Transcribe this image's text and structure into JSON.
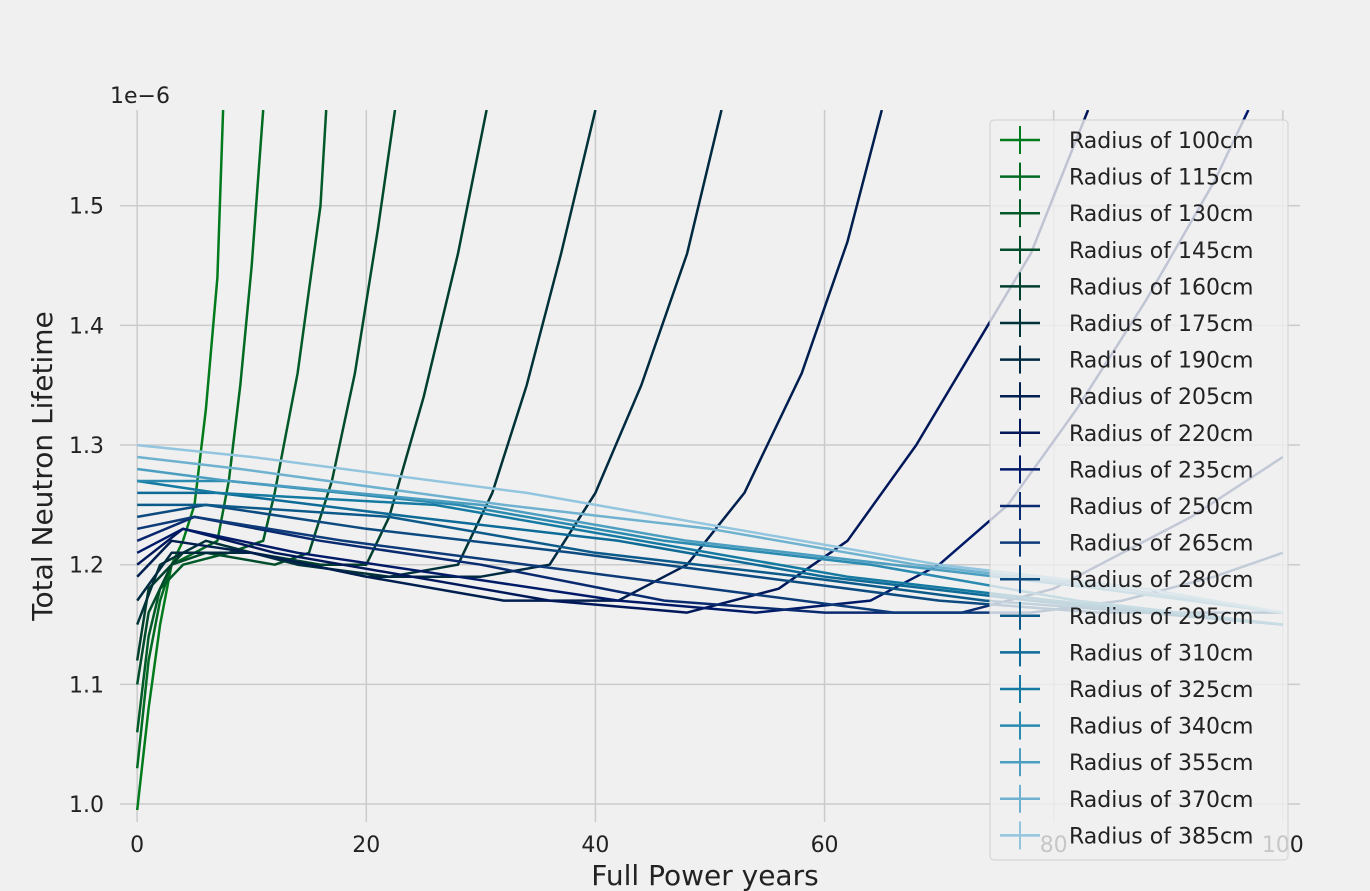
{
  "chart_data": {
    "type": "line",
    "title": "",
    "xlabel": "Full Power years",
    "ylabel": "Total Neutron Lifetime",
    "y_offset_label": "1e−6",
    "xlim": [
      -1.5,
      101.5
    ],
    "ylim": [
      0.985,
      1.58
    ],
    "xticks": [
      0,
      20,
      40,
      60,
      80,
      100
    ],
    "yticks": [
      1.0,
      1.1,
      1.2,
      1.3,
      1.4,
      1.5
    ],
    "ytick_labels": [
      "1.0",
      "1.1",
      "1.2",
      "1.3",
      "1.4",
      "1.5"
    ],
    "grid": true,
    "legend_position": "right",
    "background": "#f0f0f0",
    "series": [
      {
        "name": "Radius of 100cm",
        "color": "#007a1b",
        "points": [
          [
            0,
            0.995
          ],
          [
            1,
            1.08
          ],
          [
            2,
            1.15
          ],
          [
            3,
            1.2
          ],
          [
            4,
            1.22
          ],
          [
            5,
            1.25
          ],
          [
            6,
            1.33
          ],
          [
            7,
            1.44
          ],
          [
            7.5,
            1.58
          ]
        ]
      },
      {
        "name": "Radius of 115cm",
        "color": "#006a22",
        "points": [
          [
            0,
            1.03
          ],
          [
            1,
            1.12
          ],
          [
            2,
            1.17
          ],
          [
            3,
            1.2
          ],
          [
            5,
            1.21
          ],
          [
            7,
            1.22
          ],
          [
            8,
            1.27
          ],
          [
            9,
            1.35
          ],
          [
            10,
            1.45
          ],
          [
            11,
            1.58
          ]
        ]
      },
      {
        "name": "Radius of 130cm",
        "color": "#005a28",
        "points": [
          [
            0,
            1.06
          ],
          [
            1,
            1.14
          ],
          [
            2,
            1.18
          ],
          [
            4,
            1.2
          ],
          [
            8,
            1.21
          ],
          [
            11,
            1.22
          ],
          [
            12,
            1.26
          ],
          [
            14,
            1.36
          ],
          [
            16,
            1.5
          ],
          [
            16.5,
            1.58
          ]
        ]
      },
      {
        "name": "Radius of 145cm",
        "color": "#004c2a",
        "points": [
          [
            0,
            1.1
          ],
          [
            1,
            1.16
          ],
          [
            3,
            1.2
          ],
          [
            6,
            1.21
          ],
          [
            12,
            1.2
          ],
          [
            15,
            1.21
          ],
          [
            17,
            1.27
          ],
          [
            19,
            1.36
          ],
          [
            21,
            1.48
          ],
          [
            22.5,
            1.58
          ]
        ]
      },
      {
        "name": "Radius of 160cm",
        "color": "#003f2e",
        "points": [
          [
            0,
            1.12
          ],
          [
            1,
            1.18
          ],
          [
            4,
            1.21
          ],
          [
            10,
            1.21
          ],
          [
            16,
            1.2
          ],
          [
            20,
            1.2
          ],
          [
            22,
            1.24
          ],
          [
            25,
            1.34
          ],
          [
            28,
            1.46
          ],
          [
            30.5,
            1.58
          ]
        ]
      },
      {
        "name": "Radius of 175cm",
        "color": "#003338",
        "points": [
          [
            0,
            1.15
          ],
          [
            2,
            1.2
          ],
          [
            6,
            1.22
          ],
          [
            14,
            1.2
          ],
          [
            22,
            1.19
          ],
          [
            28,
            1.2
          ],
          [
            31,
            1.26
          ],
          [
            34,
            1.35
          ],
          [
            37,
            1.46
          ],
          [
            40,
            1.58
          ]
        ]
      },
      {
        "name": "Radius of 190cm",
        "color": "#002a40",
        "points": [
          [
            0,
            1.17
          ],
          [
            3,
            1.21
          ],
          [
            10,
            1.21
          ],
          [
            20,
            1.19
          ],
          [
            30,
            1.19
          ],
          [
            36,
            1.2
          ],
          [
            40,
            1.26
          ],
          [
            44,
            1.35
          ],
          [
            48,
            1.46
          ],
          [
            51,
            1.58
          ]
        ]
      },
      {
        "name": "Radius of 205cm",
        "color": "#001e4e",
        "points": [
          [
            0,
            1.19
          ],
          [
            3,
            1.22
          ],
          [
            10,
            1.21
          ],
          [
            20,
            1.19
          ],
          [
            32,
            1.17
          ],
          [
            42,
            1.17
          ],
          [
            48,
            1.2
          ],
          [
            53,
            1.26
          ],
          [
            58,
            1.36
          ],
          [
            62,
            1.47
          ],
          [
            65,
            1.58
          ]
        ]
      },
      {
        "name": "Radius of 220cm",
        "color": "#00175a",
        "points": [
          [
            0,
            1.2
          ],
          [
            4,
            1.23
          ],
          [
            12,
            1.21
          ],
          [
            24,
            1.19
          ],
          [
            36,
            1.17
          ],
          [
            48,
            1.16
          ],
          [
            56,
            1.18
          ],
          [
            62,
            1.22
          ],
          [
            68,
            1.3
          ],
          [
            73,
            1.38
          ],
          [
            78,
            1.46
          ],
          [
            83,
            1.58
          ]
        ]
      },
      {
        "name": "Radius of 235cm",
        "color": "#001a68",
        "points": [
          [
            0,
            1.21
          ],
          [
            4,
            1.23
          ],
          [
            14,
            1.21
          ],
          [
            28,
            1.19
          ],
          [
            42,
            1.17
          ],
          [
            54,
            1.16
          ],
          [
            64,
            1.17
          ],
          [
            70,
            1.2
          ],
          [
            76,
            1.25
          ],
          [
            82,
            1.33
          ],
          [
            88,
            1.42
          ],
          [
            94,
            1.52
          ],
          [
            97,
            1.58
          ]
        ]
      },
      {
        "name": "Radius of 250cm",
        "color": "#0a2a70",
        "points": [
          [
            0,
            1.22
          ],
          [
            5,
            1.24
          ],
          [
            16,
            1.22
          ],
          [
            30,
            1.2
          ],
          [
            46,
            1.17
          ],
          [
            60,
            1.16
          ],
          [
            72,
            1.16
          ],
          [
            80,
            1.18
          ],
          [
            86,
            1.21
          ],
          [
            92,
            1.24
          ],
          [
            100,
            1.29
          ]
        ]
      },
      {
        "name": "Radius of 265cm",
        "color": "#0d3a78",
        "points": [
          [
            0,
            1.23
          ],
          [
            5,
            1.24
          ],
          [
            18,
            1.22
          ],
          [
            34,
            1.2
          ],
          [
            50,
            1.18
          ],
          [
            66,
            1.16
          ],
          [
            78,
            1.16
          ],
          [
            86,
            1.17
          ],
          [
            94,
            1.19
          ],
          [
            100,
            1.21
          ]
        ]
      },
      {
        "name": "Radius of 280cm",
        "color": "#0d4a80",
        "points": [
          [
            0,
            1.24
          ],
          [
            6,
            1.25
          ],
          [
            20,
            1.23
          ],
          [
            38,
            1.21
          ],
          [
            54,
            1.19
          ],
          [
            70,
            1.17
          ],
          [
            84,
            1.16
          ],
          [
            100,
            1.16
          ]
        ]
      },
      {
        "name": "Radius of 295cm",
        "color": "#0c5a8a",
        "points": [
          [
            0,
            1.25
          ],
          [
            6,
            1.25
          ],
          [
            22,
            1.24
          ],
          [
            40,
            1.21
          ],
          [
            58,
            1.19
          ],
          [
            74,
            1.17
          ],
          [
            88,
            1.16
          ],
          [
            100,
            1.15
          ]
        ]
      },
      {
        "name": "Radius of 310cm",
        "color": "#0e6a96",
        "points": [
          [
            0,
            1.26
          ],
          [
            7,
            1.26
          ],
          [
            24,
            1.24
          ],
          [
            42,
            1.22
          ],
          [
            60,
            1.19
          ],
          [
            78,
            1.17
          ],
          [
            100,
            1.15
          ]
        ]
      },
      {
        "name": "Radius of 325cm",
        "color": "#147aa2",
        "points": [
          [
            0,
            1.27
          ],
          [
            7,
            1.26
          ],
          [
            26,
            1.25
          ],
          [
            44,
            1.22
          ],
          [
            62,
            1.19
          ],
          [
            80,
            1.17
          ],
          [
            100,
            1.15
          ]
        ]
      },
      {
        "name": "Radius of 340cm",
        "color": "#2a8ab0",
        "points": [
          [
            0,
            1.27
          ],
          [
            8,
            1.27
          ],
          [
            28,
            1.25
          ],
          [
            46,
            1.22
          ],
          [
            64,
            1.2
          ],
          [
            82,
            1.17
          ],
          [
            100,
            1.15
          ]
        ]
      },
      {
        "name": "Radius of 355cm",
        "color": "#4c9ec0",
        "points": [
          [
            0,
            1.28
          ],
          [
            8,
            1.27
          ],
          [
            30,
            1.25
          ],
          [
            48,
            1.22
          ],
          [
            66,
            1.2
          ],
          [
            84,
            1.18
          ],
          [
            100,
            1.16
          ]
        ]
      },
      {
        "name": "Radius of 370cm",
        "color": "#6eb2d0",
        "points": [
          [
            0,
            1.29
          ],
          [
            9,
            1.28
          ],
          [
            32,
            1.25
          ],
          [
            50,
            1.23
          ],
          [
            68,
            1.2
          ],
          [
            86,
            1.18
          ],
          [
            100,
            1.16
          ]
        ]
      },
      {
        "name": "Radius of 385cm",
        "color": "#93c6de",
        "points": [
          [
            0,
            1.3
          ],
          [
            10,
            1.29
          ],
          [
            34,
            1.26
          ],
          [
            52,
            1.23
          ],
          [
            70,
            1.2
          ],
          [
            88,
            1.18
          ],
          [
            100,
            1.16
          ]
        ]
      }
    ]
  }
}
